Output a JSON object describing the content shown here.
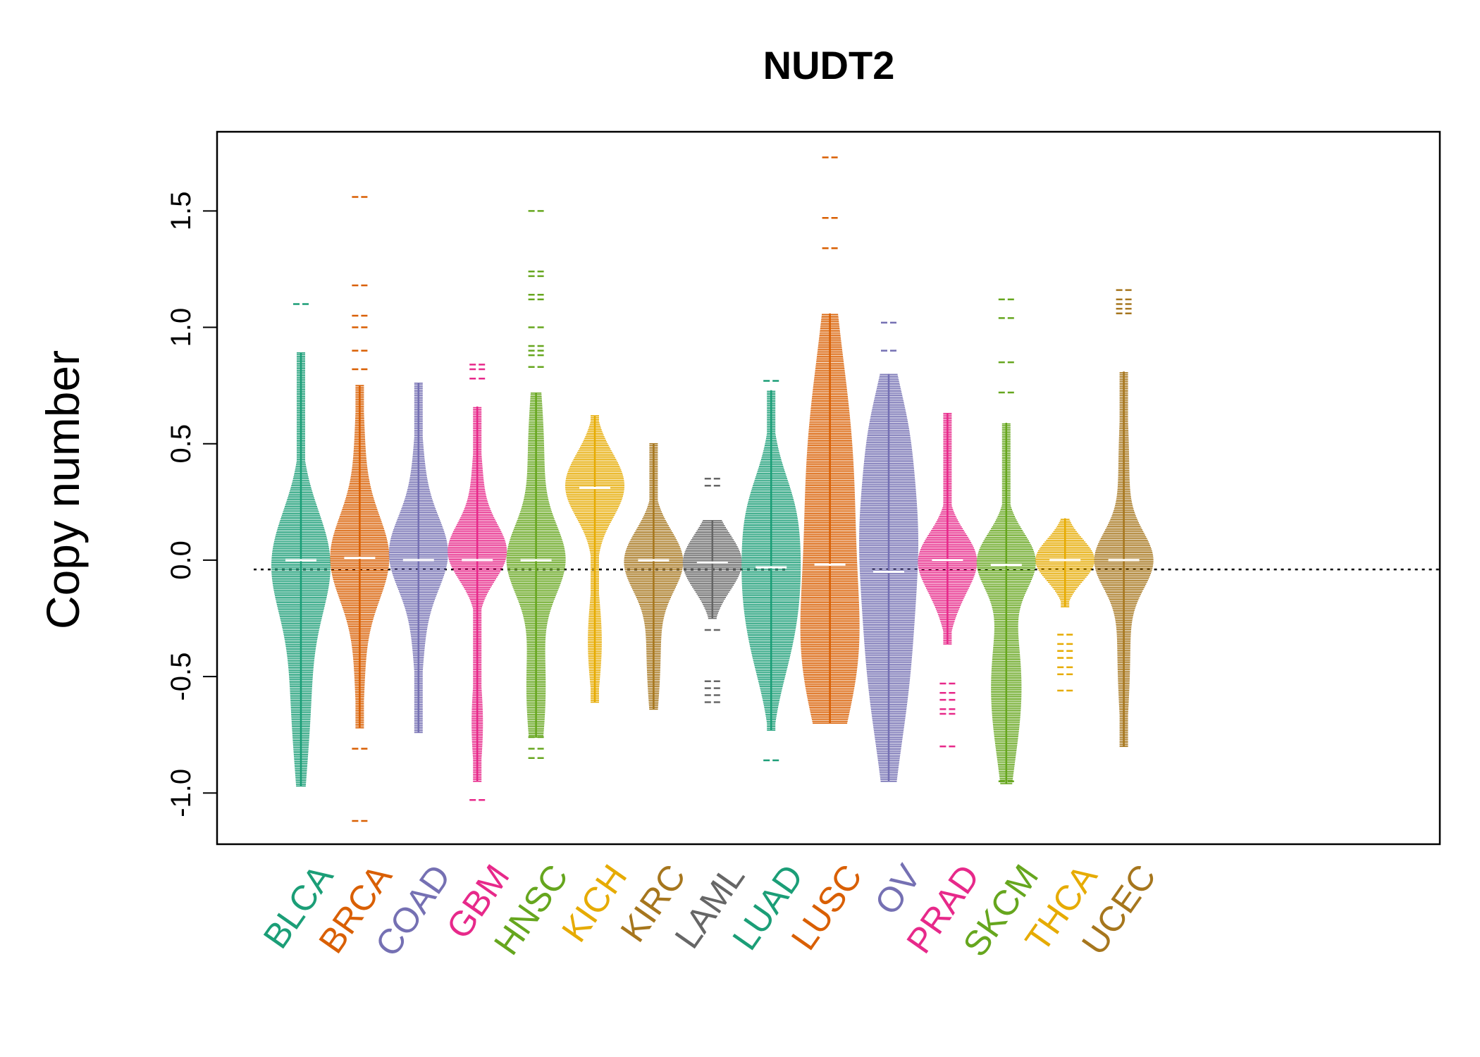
{
  "chart_data": {
    "type": "beanplot",
    "title": "NUDT2",
    "ylabel": "Copy number",
    "xlabel": "",
    "ylim": [
      -1.22,
      1.84
    ],
    "yticks": [
      -1.0,
      -0.5,
      0.0,
      0.5,
      1.0,
      1.5
    ],
    "ytick_labels": [
      "-1.0",
      "-0.5",
      "0.0",
      "0.5",
      "1.0",
      "1.5"
    ],
    "reference_line": -0.04,
    "categories": [
      "BLCA",
      "BRCA",
      "COAD",
      "GBM",
      "HNSC",
      "KICH",
      "KIRC",
      "LAML",
      "LUAD",
      "LUSC",
      "OV",
      "PRAD",
      "SKCM",
      "THCA",
      "UCEC"
    ],
    "colors": [
      "#1b9e77",
      "#d95f02",
      "#7570b3",
      "#e7298a",
      "#66a61e",
      "#e6ab02",
      "#a6761d",
      "#666666",
      "#1b9e77",
      "#d95f02",
      "#7570b3",
      "#e7298a",
      "#66a61e",
      "#e6ab02",
      "#a6761d"
    ],
    "series": [
      {
        "name": "BLCA",
        "min": -0.97,
        "max": 0.89,
        "median": 0.0,
        "outliers": [
          1.1
        ],
        "modes": [
          {
            "c": 0.0,
            "w": 0.22,
            "h": 0.16
          },
          {
            "c": -0.55,
            "w": 0.35,
            "h": 0.06
          }
        ]
      },
      {
        "name": "BRCA",
        "min": -0.72,
        "max": 0.75,
        "median": 0.01,
        "outliers": [
          1.56,
          1.18,
          1.05,
          1.0,
          0.9,
          0.82,
          -0.81,
          -1.12
        ],
        "modes": [
          {
            "c": 0.01,
            "w": 0.18,
            "h": 0.26
          },
          {
            "c": 0.45,
            "w": 0.3,
            "h": 0.05
          },
          {
            "c": -0.42,
            "w": 0.3,
            "h": 0.05
          }
        ]
      },
      {
        "name": "COAD",
        "min": -0.74,
        "max": 0.76,
        "median": 0.0,
        "outliers": [],
        "modes": [
          {
            "c": 0.03,
            "w": 0.15,
            "h": 0.22
          },
          {
            "c": -0.25,
            "w": 0.25,
            "h": 0.06
          },
          {
            "c": 0.3,
            "w": 0.25,
            "h": 0.06
          }
        ]
      },
      {
        "name": "GBM",
        "min": -0.95,
        "max": 0.66,
        "median": 0.0,
        "outliers": [
          0.84,
          0.82,
          0.78,
          -1.03
        ],
        "modes": [
          {
            "c": 0.03,
            "w": 0.12,
            "h": 0.24
          },
          {
            "c": -0.7,
            "w": 0.2,
            "h": 0.05
          },
          {
            "c": 0.3,
            "w": 0.2,
            "h": 0.05
          }
        ]
      },
      {
        "name": "HNSC",
        "min": -0.76,
        "max": 0.72,
        "median": 0.0,
        "outliers": [
          1.5,
          1.24,
          1.22,
          1.14,
          1.12,
          1.0,
          0.92,
          0.9,
          0.88,
          0.83,
          -0.76,
          -0.81,
          -0.85
        ],
        "modes": [
          {
            "c": 0.0,
            "w": 0.15,
            "h": 0.16
          },
          {
            "c": -0.55,
            "w": 0.28,
            "h": 0.06
          },
          {
            "c": 0.45,
            "w": 0.3,
            "h": 0.05
          }
        ]
      },
      {
        "name": "KICH",
        "min": -0.61,
        "max": 0.62,
        "median": 0.31,
        "outliers": [],
        "modes": [
          {
            "c": 0.32,
            "w": 0.14,
            "h": 0.34
          },
          {
            "c": -0.35,
            "w": 0.2,
            "h": 0.08
          }
        ]
      },
      {
        "name": "KIRC",
        "min": -0.64,
        "max": 0.5,
        "median": 0.0,
        "outliers": [],
        "modes": [
          {
            "c": 0.0,
            "w": 0.13,
            "h": 0.2
          },
          {
            "c": -0.4,
            "w": 0.25,
            "h": 0.05
          }
        ]
      },
      {
        "name": "LAML",
        "min": -0.25,
        "max": 0.17,
        "median": -0.01,
        "outliers": [
          0.35,
          0.32,
          -0.3,
          -0.52,
          -0.55,
          -0.58,
          -0.61
        ],
        "modes": [
          {
            "c": -0.01,
            "w": 0.12,
            "h": 0.42
          }
        ]
      },
      {
        "name": "LUAD",
        "min": -0.73,
        "max": 0.73,
        "median": -0.03,
        "outliers": [
          0.77,
          -0.86
        ],
        "modes": [
          {
            "c": -0.03,
            "w": 0.28,
            "h": 0.16
          },
          {
            "c": 0.25,
            "w": 0.15,
            "h": 0.04
          },
          {
            "c": -0.4,
            "w": 0.2,
            "h": 0.05
          }
        ]
      },
      {
        "name": "LUSC",
        "min": -0.7,
        "max": 1.06,
        "median": -0.02,
        "outliers": [
          1.73,
          1.47,
          1.34
        ],
        "modes": [
          {
            "c": 0.1,
            "w": 0.5,
            "h": 0.12
          },
          {
            "c": -0.45,
            "w": 0.3,
            "h": 0.1
          },
          {
            "c": 0.65,
            "w": 0.4,
            "h": 0.05
          }
        ]
      },
      {
        "name": "OV",
        "min": -0.95,
        "max": 0.8,
        "median": -0.05,
        "outliers": [
          1.02,
          0.9
        ],
        "modes": [
          {
            "c": 0.2,
            "w": 0.3,
            "h": 0.11
          },
          {
            "c": -0.4,
            "w": 0.4,
            "h": 0.11
          },
          {
            "c": 0.6,
            "w": 0.2,
            "h": 0.05
          }
        ]
      },
      {
        "name": "PRAD",
        "min": -0.36,
        "max": 0.63,
        "median": 0.0,
        "outliers": [
          -0.53,
          -0.57,
          -0.6,
          -0.64,
          -0.66,
          -0.8
        ],
        "modes": [
          {
            "c": 0.0,
            "w": 0.12,
            "h": 0.32
          },
          {
            "c": -0.2,
            "w": 0.1,
            "h": 0.06
          }
        ]
      },
      {
        "name": "SKCM",
        "min": -0.96,
        "max": 0.59,
        "median": -0.02,
        "outliers": [
          1.12,
          1.04,
          0.85,
          0.72,
          -0.95
        ],
        "modes": [
          {
            "c": 0.0,
            "w": 0.12,
            "h": 0.14
          },
          {
            "c": -0.55,
            "w": 0.3,
            "h": 0.08
          }
        ]
      },
      {
        "name": "THCA",
        "min": -0.2,
        "max": 0.18,
        "median": 0.0,
        "outliers": [
          -0.32,
          -0.36,
          -0.39,
          -0.42,
          -0.46,
          -0.49,
          -0.56
        ],
        "modes": [
          {
            "c": 0.0,
            "w": 0.09,
            "h": 0.44
          }
        ]
      },
      {
        "name": "UCEC",
        "min": -0.8,
        "max": 0.81,
        "median": 0.0,
        "outliers": [
          1.16,
          1.12,
          1.1,
          1.08,
          1.06
        ],
        "modes": [
          {
            "c": 0.0,
            "w": 0.12,
            "h": 0.24
          },
          {
            "c": -0.4,
            "w": 0.3,
            "h": 0.06
          },
          {
            "c": 0.4,
            "w": 0.3,
            "h": 0.05
          }
        ]
      }
    ]
  }
}
